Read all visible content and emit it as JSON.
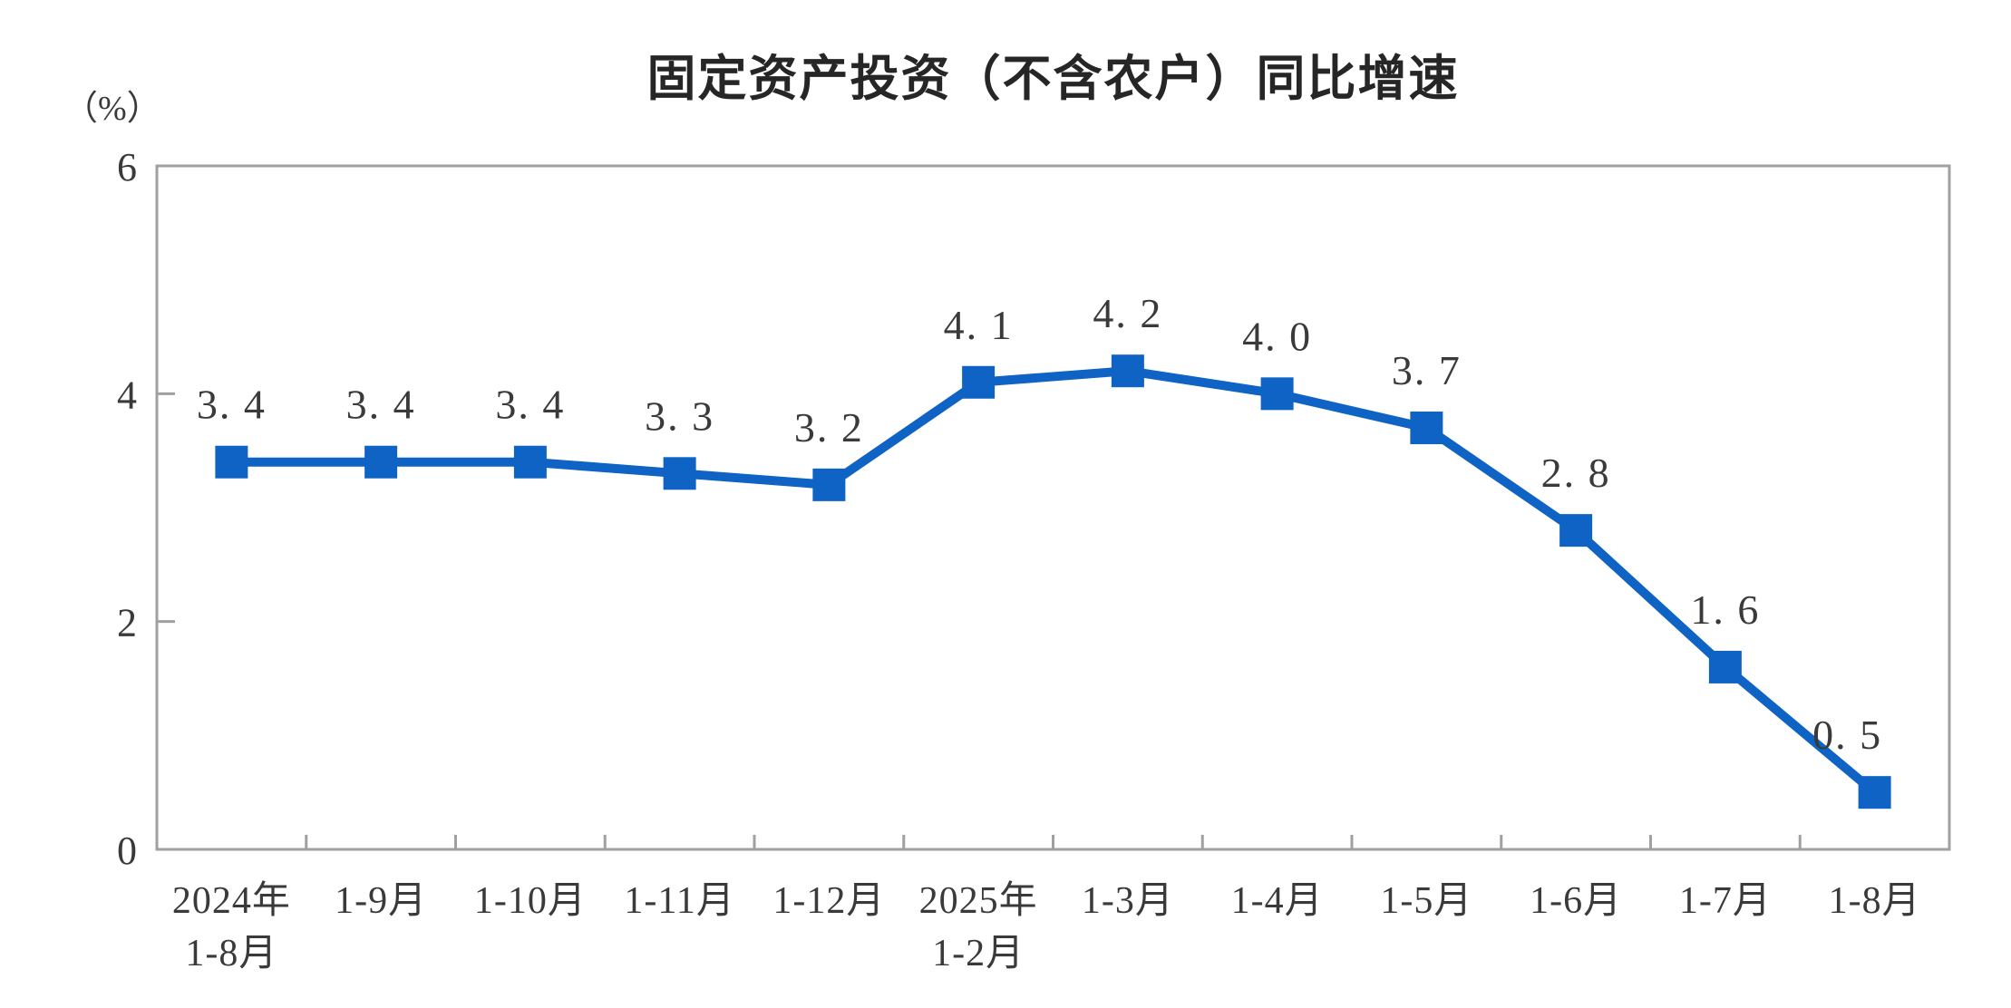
{
  "chart_data": {
    "type": "line",
    "title": "固定资产投资（不含农户）同比增速",
    "unit_label": "（%）",
    "categories": [
      "2024年\n1-8月",
      "1-9月",
      "1-10月",
      "1-11月",
      "1-12月",
      "2025年\n1-2月",
      "1-3月",
      "1-4月",
      "1-5月",
      "1-6月",
      "1-7月",
      "1-8月"
    ],
    "values": [
      3.4,
      3.4,
      3.4,
      3.3,
      3.2,
      4.1,
      4.2,
      4.0,
      3.7,
      2.8,
      1.6,
      0.5
    ],
    "value_labels": [
      "3. 4",
      "3. 4",
      "3. 4",
      "3. 3",
      "3. 2",
      "4. 1",
      "4. 2",
      "4. 0",
      "3. 7",
      "2. 8",
      "1. 6",
      "0. 5"
    ],
    "xlabel": "",
    "ylabel": "",
    "ylim": [
      0,
      6
    ],
    "yticks": [
      0,
      2,
      4,
      6
    ],
    "grid": false,
    "legend_position": "none",
    "marker_shape": "square"
  },
  "colors": {
    "series_blue": "#0e63c4",
    "text": "#3a3a3a",
    "axis_gray": "#a0a0a0",
    "background": "#ffffff"
  }
}
